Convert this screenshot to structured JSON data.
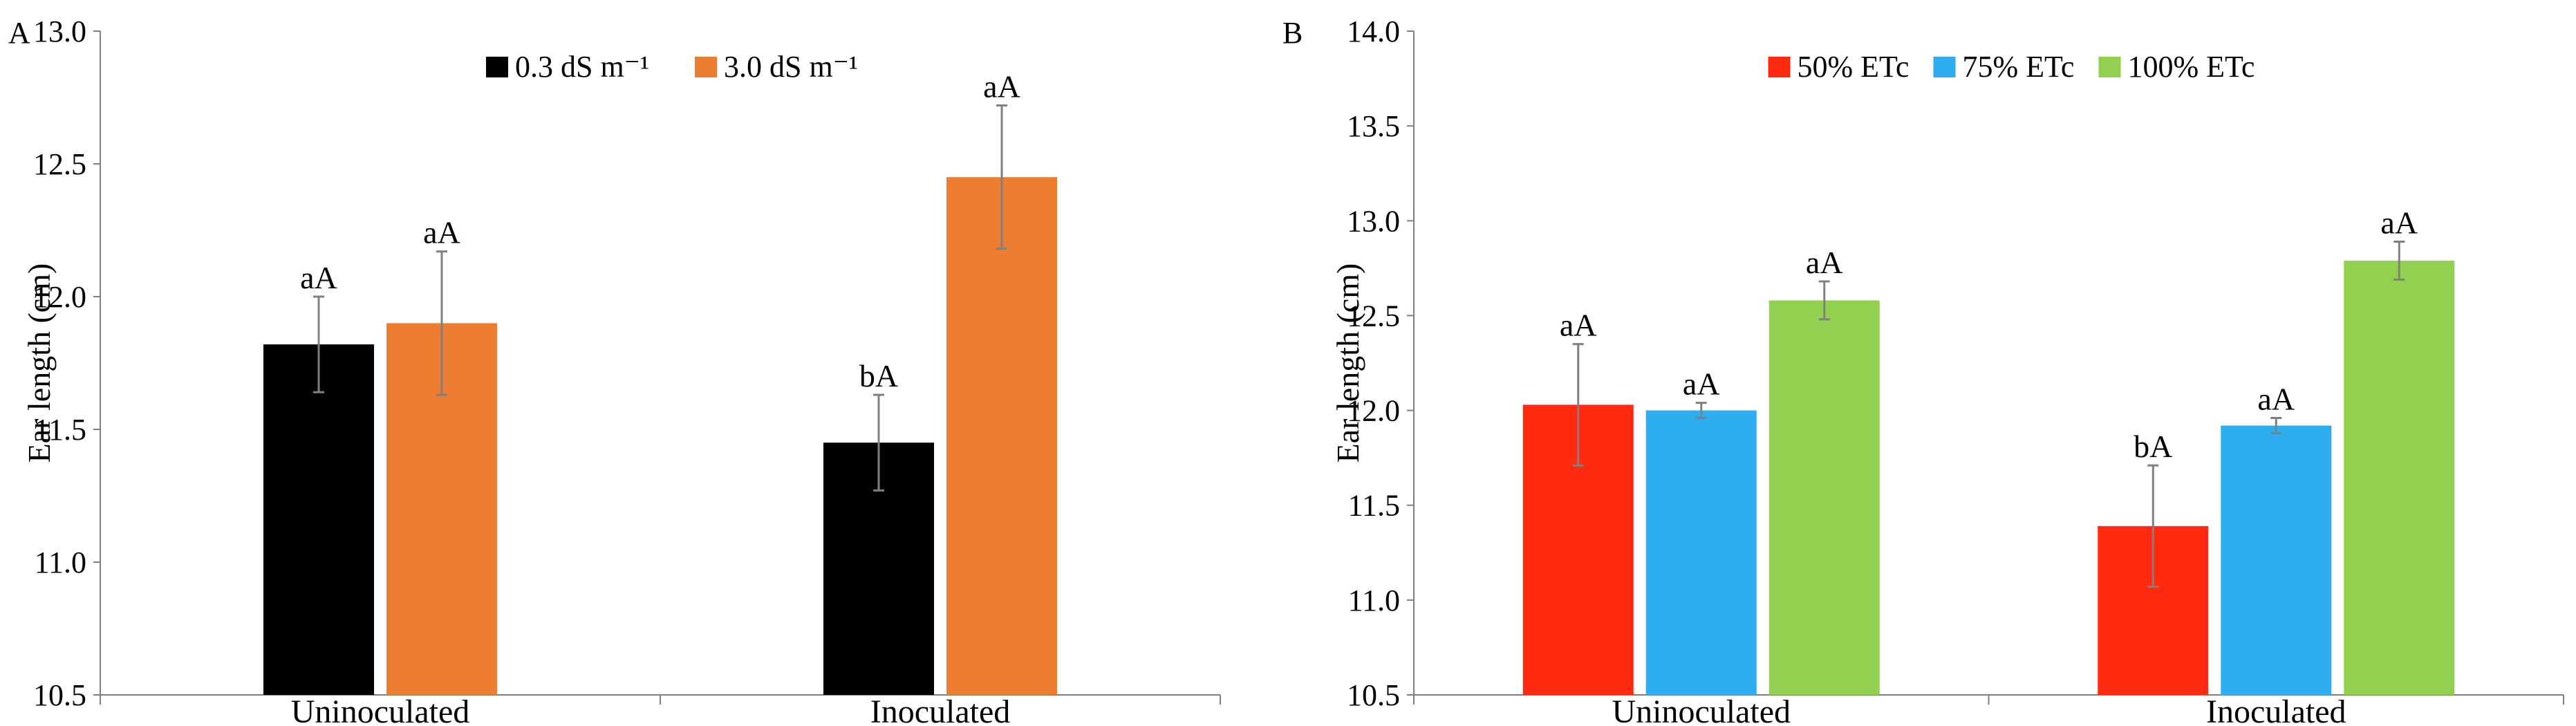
{
  "chart_data": [
    {
      "panel": "A",
      "type": "bar",
      "ylabel": "Ear length (cm)",
      "xlabel": "",
      "ylim": [
        10.5,
        13.0
      ],
      "yticks": [
        "10.5",
        "11.0",
        "11.5",
        "12.0",
        "12.5",
        "13.0"
      ],
      "categories": [
        "Uninoculated",
        "Inoculated"
      ],
      "legend_position": "top-center",
      "series": [
        {
          "name": "0.3 dS m⁻¹",
          "color": "#000000",
          "values": [
            11.82,
            11.45
          ],
          "errors": [
            0.18,
            0.18
          ],
          "labels": [
            "aA",
            "bA"
          ]
        },
        {
          "name": "3.0 dS m⁻¹",
          "color": "#ed7d31",
          "values": [
            11.9,
            12.45
          ],
          "errors": [
            0.27,
            0.27
          ],
          "labels": [
            "aA",
            "aA"
          ]
        }
      ]
    },
    {
      "panel": "B",
      "type": "bar",
      "ylabel": "Ear length (cm)",
      "xlabel": "",
      "ylim": [
        10.5,
        14.0
      ],
      "yticks": [
        "10.5",
        "11.0",
        "11.5",
        "12.0",
        "12.5",
        "13.0",
        "13.5",
        "14.0"
      ],
      "categories": [
        "Uninoculated",
        "Inoculated"
      ],
      "legend_position": "top-center",
      "series": [
        {
          "name": "50% ETc",
          "color": "#ff2a0f",
          "values": [
            12.03,
            11.39
          ],
          "errors": [
            0.32,
            0.32
          ],
          "labels": [
            "aA",
            "bA"
          ]
        },
        {
          "name": "75% ETc",
          "color": "#2eaef0",
          "values": [
            12.0,
            11.92
          ],
          "errors": [
            0.04,
            0.04
          ],
          "labels": [
            "aA",
            "aA"
          ]
        },
        {
          "name": "100% ETc",
          "color": "#92d050",
          "values": [
            12.58,
            12.79
          ],
          "errors": [
            0.1,
            0.1
          ],
          "labels": [
            "aA",
            "aA"
          ]
        }
      ]
    }
  ]
}
